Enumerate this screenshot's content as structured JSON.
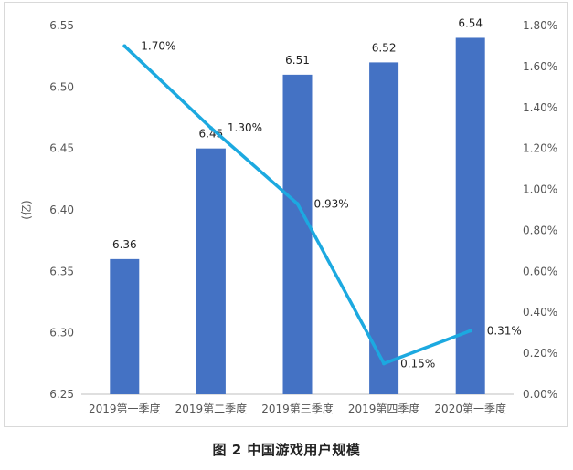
{
  "chart_data": {
    "type": "bar",
    "categories": [
      "2019第一季度",
      "2019第二季度",
      "2019第三季度",
      "2019第四季度",
      "2020第一季度"
    ],
    "series": [
      {
        "type": "bar",
        "axis": "left",
        "values": [
          6.36,
          6.45,
          6.51,
          6.52,
          6.54
        ],
        "labels": [
          "6.36",
          "6.45",
          "6.51",
          "6.52",
          "6.54"
        ],
        "color": "#4472C4"
      },
      {
        "type": "line",
        "axis": "right",
        "values": [
          1.7,
          1.3,
          0.93,
          0.15,
          0.31
        ],
        "labels": [
          "1.70%",
          "1.30%",
          "0.93%",
          "0.15%",
          "0.31%"
        ],
        "color": "#1CA9E0"
      }
    ],
    "ylabel": "(亿)",
    "ylim": [
      6.25,
      6.55
    ],
    "yticks": [
      "6.25",
      "6.30",
      "6.35",
      "6.40",
      "6.45",
      "6.50",
      "6.55"
    ],
    "y2lim": [
      0,
      1.8
    ],
    "y2ticks": [
      "0.00%",
      "0.20%",
      "0.40%",
      "0.60%",
      "0.80%",
      "1.00%",
      "1.20%",
      "1.40%",
      "1.60%",
      "1.80%"
    ],
    "grid": false,
    "legend": "none"
  },
  "caption": "图 2 中国游戏用户规模"
}
